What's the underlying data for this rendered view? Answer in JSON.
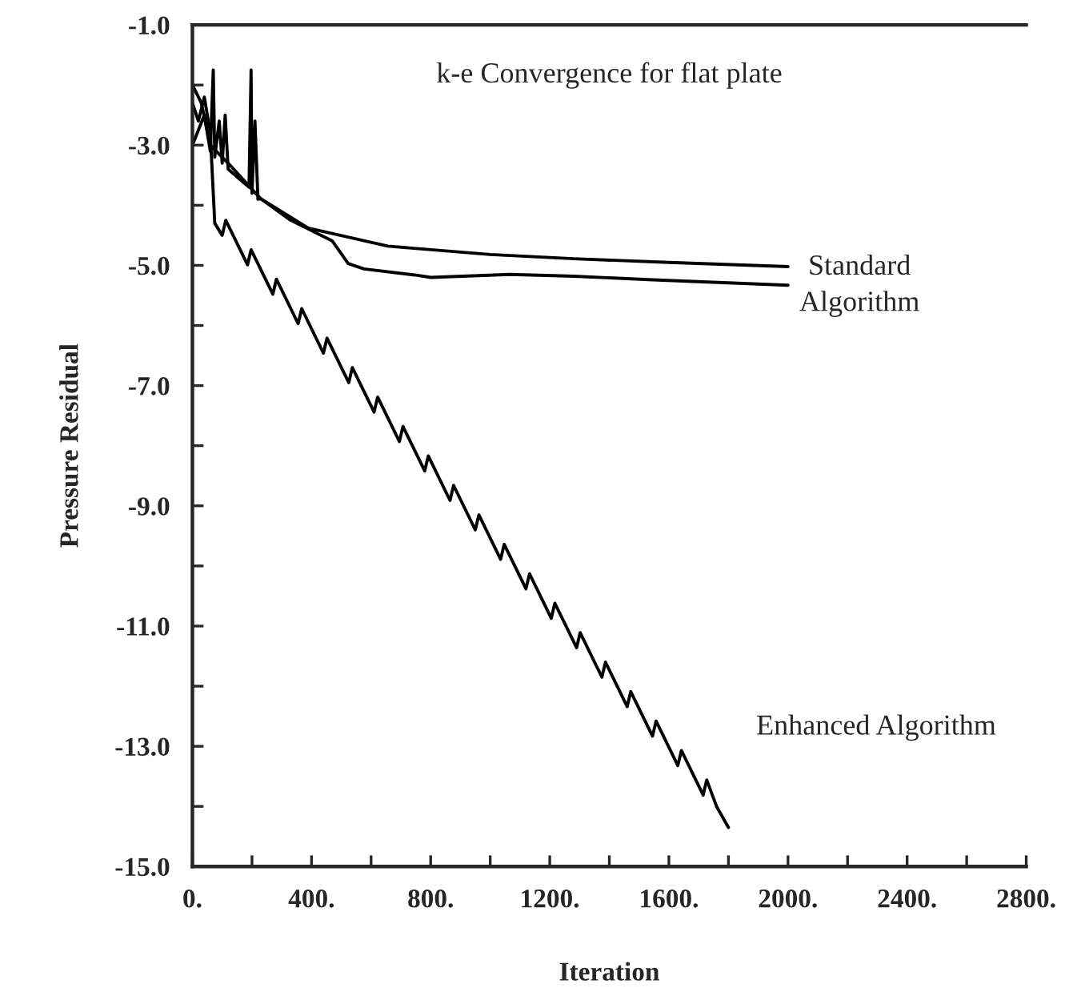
{
  "chart_data": {
    "type": "line",
    "title": "k-e Convergence for flat plate",
    "xlabel": "Iteration",
    "ylabel": "Pressure Residual",
    "xlim": [
      0,
      2800
    ],
    "ylim": [
      -15,
      -1
    ],
    "xticks": [
      {
        "value": 0,
        "label": "0."
      },
      {
        "value": 200,
        "label": null
      },
      {
        "value": 400,
        "label": "400."
      },
      {
        "value": 600,
        "label": null
      },
      {
        "value": 800,
        "label": "800."
      },
      {
        "value": 1000,
        "label": null
      },
      {
        "value": 1200,
        "label": "1200."
      },
      {
        "value": 1400,
        "label": null
      },
      {
        "value": 1600,
        "label": "1600."
      },
      {
        "value": 1800,
        "label": null
      },
      {
        "value": 2000,
        "label": "2000."
      },
      {
        "value": 2200,
        "label": null
      },
      {
        "value": 2400,
        "label": "2400."
      },
      {
        "value": 2600,
        "label": null
      },
      {
        "value": 2800,
        "label": "2800."
      }
    ],
    "yticks": [
      {
        "value": -1,
        "label": "-1.0"
      },
      {
        "value": -2,
        "label": null
      },
      {
        "value": -3,
        "label": "-3.0"
      },
      {
        "value": -4,
        "label": null
      },
      {
        "value": -5,
        "label": "-5.0"
      },
      {
        "value": -6,
        "label": null
      },
      {
        "value": -7,
        "label": "-7.0"
      },
      {
        "value": -8,
        "label": null
      },
      {
        "value": -9,
        "label": "-9.0"
      },
      {
        "value": -10,
        "label": null
      },
      {
        "value": -11,
        "label": "-11.0"
      },
      {
        "value": -12,
        "label": null
      },
      {
        "value": -13,
        "label": "-13.0"
      },
      {
        "value": -14,
        "label": null
      },
      {
        "value": -15,
        "label": "-15.0"
      }
    ],
    "grid": false,
    "legend": false,
    "series": [
      {
        "color": "#000000",
        "x": [
          0,
          30,
          60,
          120,
          229,
          389,
          656,
          1000,
          1280,
          1600,
          2000
        ],
        "values": [
          -2.0,
          -2.3,
          -3.0,
          -3.3,
          -3.89,
          -4.38,
          -4.68,
          -4.82,
          -4.89,
          -4.95,
          -5.02
        ]
      },
      {
        "color": "#000000",
        "x": [
          0,
          40,
          60,
          70,
          75,
          90,
          100,
          110,
          120,
          190,
          197,
          200,
          210,
          220,
          229,
          330,
          469,
          523,
          576,
          747,
          800,
          1067,
          1280,
          1547,
          2000
        ],
        "values": [
          -3.0,
          -2.5,
          -3.1,
          -1.75,
          -3.2,
          -2.6,
          -3.3,
          -2.5,
          -3.4,
          -3.7,
          -1.75,
          -3.8,
          -2.6,
          -3.9,
          -3.89,
          -4.25,
          -4.59,
          -4.97,
          -5.06,
          -5.16,
          -5.2,
          -5.15,
          -5.18,
          -5.24,
          -5.33
        ]
      },
      {
        "color": "#000000",
        "x": [
          0,
          20,
          40,
          60,
          75,
          100,
          112,
          185,
          197,
          270,
          282,
          355,
          367,
          440,
          452,
          525,
          537,
          610,
          622,
          695,
          707,
          780,
          792,
          865,
          877,
          950,
          962,
          1035,
          1047,
          1120,
          1132,
          1205,
          1217,
          1290,
          1302,
          1375,
          1387,
          1460,
          1472,
          1545,
          1557,
          1630,
          1642,
          1715,
          1727,
          1760,
          1800
        ],
        "values": [
          -2.3,
          -2.6,
          -2.2,
          -2.8,
          -4.3,
          -4.5,
          -4.25,
          -4.99,
          -4.74,
          -5.48,
          -5.23,
          -5.97,
          -5.72,
          -6.46,
          -6.21,
          -6.95,
          -6.7,
          -7.44,
          -7.19,
          -7.93,
          -7.68,
          -8.42,
          -8.17,
          -8.91,
          -8.66,
          -9.4,
          -9.15,
          -9.89,
          -9.64,
          -10.38,
          -10.13,
          -10.87,
          -10.62,
          -11.36,
          -11.11,
          -11.85,
          -11.6,
          -12.34,
          -12.09,
          -12.83,
          -12.58,
          -13.32,
          -13.07,
          -13.81,
          -13.56,
          -14.0,
          -14.35
        ]
      }
    ],
    "annotations": [
      "Standard\nAlgorithm",
      "Enhanced Algorithm"
    ]
  }
}
